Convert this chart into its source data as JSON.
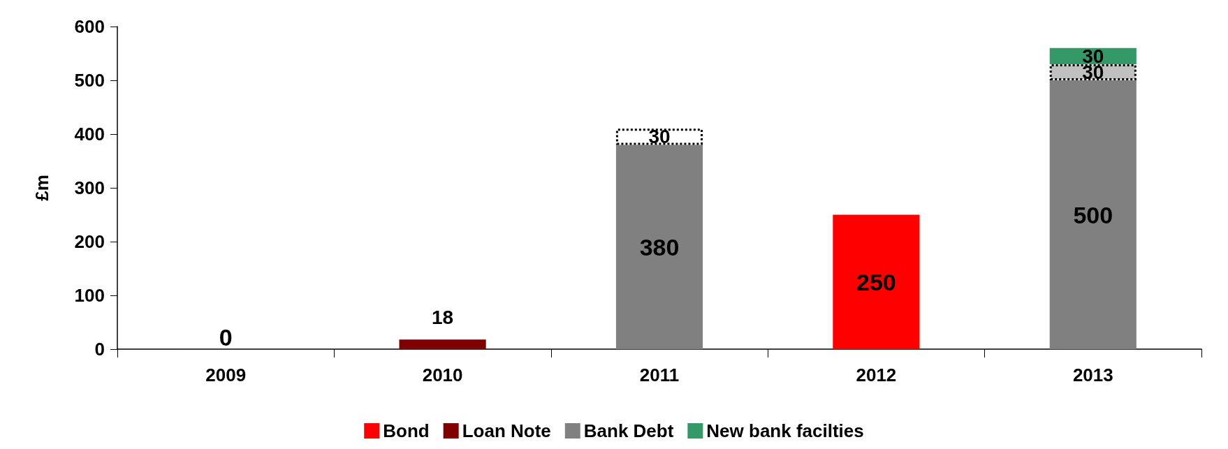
{
  "chart_data": {
    "type": "bar",
    "ylabel": "£m",
    "stacked": true,
    "categories": [
      "2009",
      "2010",
      "2011",
      "2012",
      "2013"
    ],
    "series": [
      {
        "name": "Bond",
        "color": "#ff0000",
        "values": [
          0,
          null,
          null,
          250,
          null
        ]
      },
      {
        "name": "Loan Note",
        "color": "#800000",
        "values": [
          null,
          18,
          null,
          null,
          null
        ]
      },
      {
        "name": "Bank Debt",
        "color": "#808080",
        "values": [
          null,
          null,
          380,
          null,
          500
        ]
      },
      {
        "colors": [
          null,
          null,
          "#ffffff",
          null,
          "#c0c0c0"
        ],
        "line_style": "dotted",
        "values": [
          null,
          null,
          30,
          null,
          30
        ]
      },
      {
        "name": "New bank facilties",
        "color": "#339966",
        "values": [
          null,
          null,
          null,
          null,
          30
        ]
      }
    ],
    "ylim": [
      0,
      600
    ],
    "yticks": [
      0,
      100,
      200,
      300,
      400,
      500,
      600
    ],
    "grid": false,
    "legend": "bottom",
    "data_labels": true
  }
}
